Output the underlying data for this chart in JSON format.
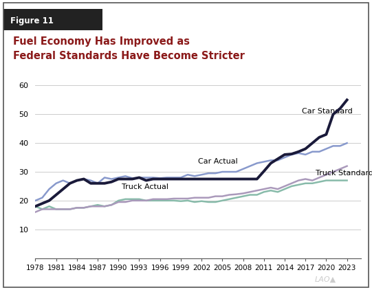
{
  "title_line1": "Fuel Economy Has Improved as",
  "title_line2": "Federal Standards Have Become Stricter",
  "figure_label": "Figure 11",
  "background_color": "#ffffff",
  "title_color": "#8B1A1A",
  "border_color": "#333333",
  "ylim": [
    0,
    60
  ],
  "yticks": [
    10,
    20,
    30,
    40,
    50,
    60
  ],
  "car_standard_color": "#1a1a3a",
  "car_actual_color": "#8899cc",
  "truck_standard_color": "#aa99bb",
  "truck_actual_color": "#88bbaa",
  "car_standard_label": "Car Standard",
  "car_actual_label": "Car Actual",
  "truck_standard_label": "Truck Standard",
  "truck_actual_label": "Truck Actual",
  "years": [
    1978,
    1979,
    1980,
    1981,
    1982,
    1983,
    1984,
    1985,
    1986,
    1987,
    1988,
    1989,
    1990,
    1991,
    1992,
    1993,
    1994,
    1995,
    1996,
    1997,
    1998,
    1999,
    2000,
    2001,
    2002,
    2003,
    2004,
    2005,
    2006,
    2007,
    2008,
    2009,
    2010,
    2011,
    2012,
    2013,
    2014,
    2015,
    2016,
    2017,
    2018,
    2019,
    2020,
    2021,
    2022,
    2023,
    2024,
    2025
  ],
  "car_standard": [
    18,
    19,
    20,
    22,
    24,
    26,
    27,
    27.5,
    26,
    26,
    26,
    26.5,
    27.5,
    27.5,
    27.5,
    28,
    27,
    27.5,
    27.5,
    27.5,
    27.5,
    27.5,
    27.5,
    27.5,
    27.5,
    27.5,
    27.5,
    27.5,
    27.5,
    27.5,
    27.5,
    27.5,
    27.5,
    30.2,
    33,
    34.5,
    36,
    36.2,
    37,
    38,
    40,
    42,
    43,
    50,
    52,
    55,
    null,
    null
  ],
  "car_actual": [
    20,
    21,
    24,
    26,
    27,
    26,
    27,
    27.5,
    27,
    26,
    28,
    27.5,
    28,
    28.5,
    27.8,
    28,
    28,
    28,
    27.8,
    28,
    28,
    28,
    29,
    28.5,
    29,
    29.5,
    29.5,
    30,
    30,
    30,
    31,
    32,
    33,
    33.5,
    34,
    34,
    35,
    36,
    36.5,
    36,
    37,
    37,
    38,
    39,
    39,
    40,
    null,
    null
  ],
  "truck_standard": [
    16,
    17,
    17,
    17,
    17,
    17,
    17.5,
    17.5,
    18,
    18,
    18,
    18.5,
    19.5,
    19.5,
    20,
    20,
    20,
    20.5,
    20.5,
    20.5,
    20.7,
    20.7,
    20.7,
    21,
    21,
    21,
    21.5,
    21.5,
    22,
    22.2,
    22.5,
    23,
    23.5,
    24,
    24.5,
    24,
    25,
    26,
    27,
    27.5,
    27,
    28,
    29,
    30,
    31,
    32,
    null,
    null
  ],
  "truck_actual": [
    18,
    17,
    18,
    17,
    17,
    17,
    17.5,
    17.5,
    18,
    18.5,
    18,
    18.5,
    20,
    20.5,
    20.5,
    20.5,
    20,
    20,
    20,
    20,
    20,
    19.8,
    20,
    19.5,
    19.8,
    19.5,
    19.5,
    20,
    20.5,
    21,
    21.5,
    22,
    22,
    23,
    23.5,
    23,
    24,
    25,
    25.5,
    26,
    26,
    26.5,
    27,
    27,
    27,
    27,
    null,
    null
  ]
}
